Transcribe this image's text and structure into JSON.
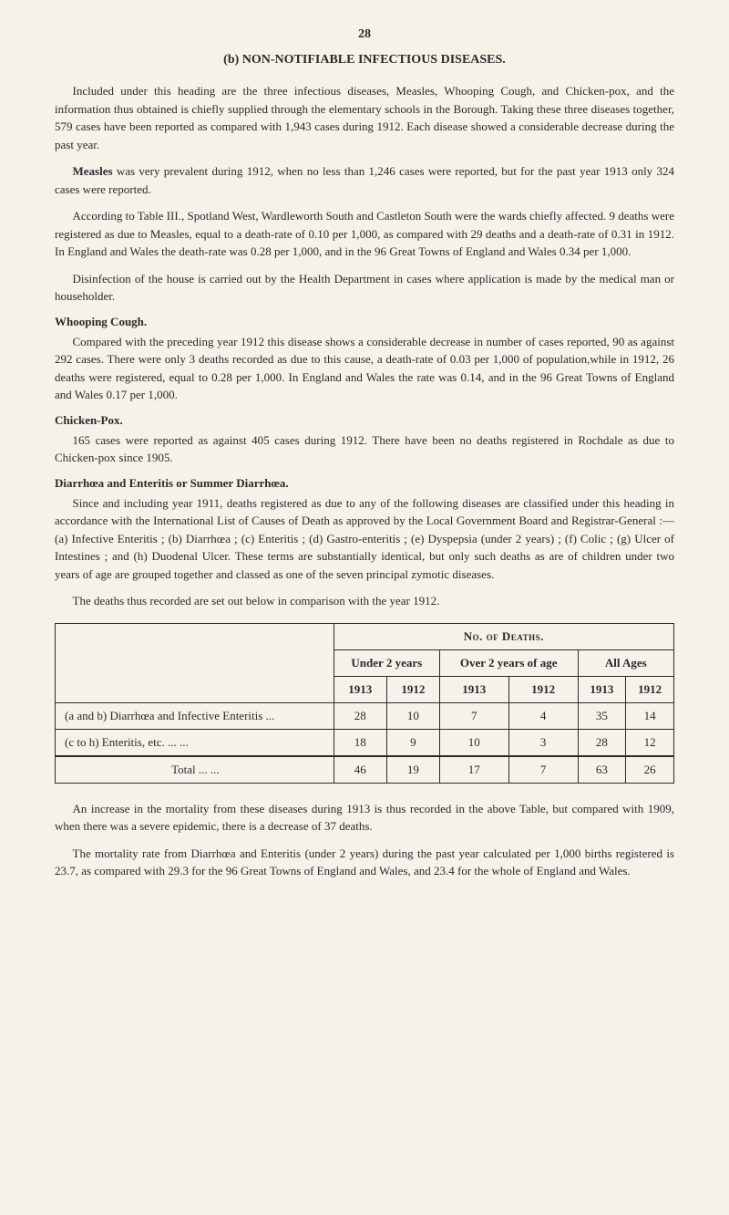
{
  "page_number": "28",
  "section_title": "(b) NON-NOTIFIABLE INFECTIOUS DISEASES.",
  "para1": "Included under this heading are the three infectious diseases, Measles, Whooping Cough, and Chicken-pox, and the information thus obtained is chiefly supplied through the elementary schools in the Borough. Taking these three diseases together, 579 cases have been reported as compared with 1,943 cases during 1912. Each disease showed a considerable decrease during the past year.",
  "para2_bold": "Measles",
  "para2": " was very prevalent during 1912, when no less than 1,246 cases were reported, but for the past year 1913 only 324 cases were reported.",
  "para3": "According to Table III., Spotland West, Wardleworth South and Castleton South were the wards chiefly affected. 9 deaths were registered as due to Measles, equal to a death-rate of 0.10 per 1,000, as compared with 29 deaths and a death-rate of 0.31 in 1912. In England and Wales the death-rate was 0.28 per 1,000, and in the 96 Great Towns of England and Wales 0.34 per 1,000.",
  "para4": "Disinfection of the house is carried out by the Health Department in cases where application is made by the medical man or householder.",
  "sub_whooping": "Whooping Cough.",
  "para5": "Compared with the preceding year 1912 this disease shows a considerable decrease in number of cases reported, 90 as against 292 cases. There were only 3 deaths recorded as due to this cause, a death-rate of 0.03 per 1,000 of population,while in 1912, 26 deaths were registered, equal to 0.28 per 1,000. In England and Wales the rate was 0.14, and in the 96 Great Towns of England and Wales 0.17 per 1,000.",
  "sub_chicken": "Chicken-Pox.",
  "para6": "165 cases were reported as against 405 cases during 1912. There have been no deaths registered in Rochdale as due to Chicken-pox since 1905.",
  "sub_diarrhoea": "Diarrhœa and Enteritis or Summer Diarrhœa.",
  "para7": "Since and including year 1911, deaths registered as due to any of the following diseases are classified under this heading in accordance with the International List of Causes of Death as approved by the Local Government Board and Registrar-General :—(a) Infective Enteritis ; (b) Diarrhœa ; (c) Enteritis ; (d) Gastro-enteritis ; (e) Dyspepsia (under 2 years) ; (f) Colic ; (g) Ulcer of Intestines ; and (h) Duodenal Ulcer. These terms are substantially identical, but only such deaths as are of children under two years of age are grouped together and classed as one of the seven principal zymotic diseases.",
  "para8": "The deaths thus recorded are set out below in comparison with the year 1912.",
  "table": {
    "header_main": "No. of Deaths.",
    "col_groups": [
      "Under 2 years",
      "Over 2 years of age",
      "All Ages"
    ],
    "years": [
      "1913",
      "1912",
      "1913",
      "1912",
      "1913",
      "1912"
    ],
    "rows": [
      {
        "label": "(a and b) Diarrhœa and Infective Enteritis ...",
        "values": [
          "28",
          "10",
          "7",
          "4",
          "35",
          "14"
        ]
      },
      {
        "label": "(c to h) Enteritis, etc. ... ...",
        "values": [
          "18",
          "9",
          "10",
          "3",
          "28",
          "12"
        ]
      }
    ],
    "total_label": "Total ... ...",
    "total_values": [
      "46",
      "19",
      "17",
      "7",
      "63",
      "26"
    ]
  },
  "para9": "An increase in the mortality from these diseases during 1913 is thus recorded in the above Table, but compared with 1909, when there was a severe epidemic, there is a decrease of 37 deaths.",
  "para10": "The mortality rate from Diarrhœa and Enteritis (under 2 years) during the past year calculated per 1,000 births registered is 23.7, as compared with 29.3 for the 96 Great Towns of England and Wales, and 23.4 for the whole of England and Wales."
}
